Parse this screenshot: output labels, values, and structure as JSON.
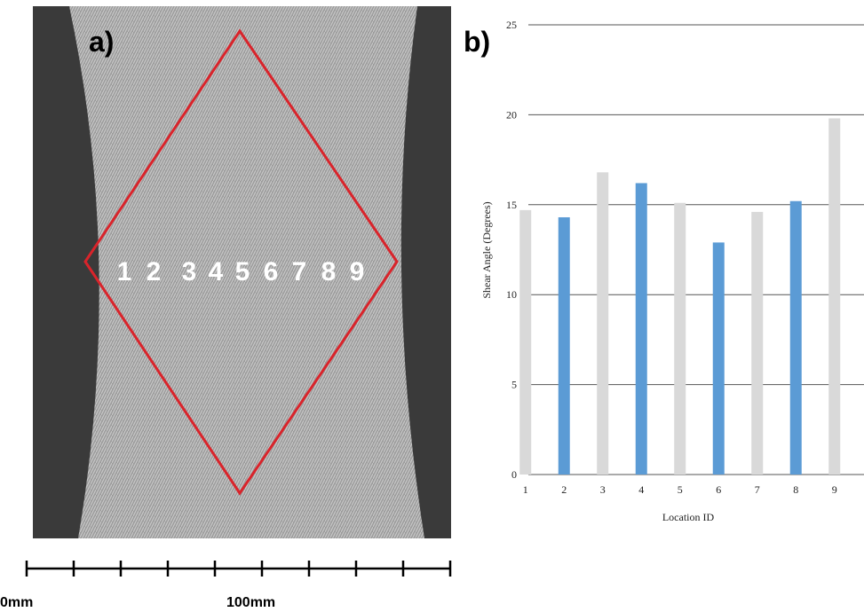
{
  "figure": {
    "panel_a": "a)",
    "panel_b": "b)",
    "location_labels": [
      "1",
      "2",
      "3",
      "4",
      "5",
      "6",
      "7",
      "8",
      "9"
    ],
    "scale_start": "0mm",
    "scale_mid": "100mm"
  },
  "chart_data": {
    "type": "bar",
    "y_label": "Shear Angle (Degrees)",
    "x_label": "Location ID",
    "categories": [
      "1",
      "2",
      "3",
      "4",
      "5",
      "6",
      "7",
      "8",
      "9"
    ],
    "values": [
      14.7,
      14.3,
      16.8,
      16.2,
      15.1,
      12.9,
      14.6,
      15.2,
      19.8
    ],
    "colors": [
      "#d9d9d9",
      "#5b9bd5",
      "#d9d9d9",
      "#5b9bd5",
      "#d9d9d9",
      "#5b9bd5",
      "#d9d9d9",
      "#5b9bd5",
      "#d9d9d9"
    ],
    "ylim": [
      0,
      25
    ],
    "yticks": [
      0,
      5,
      10,
      15,
      20,
      25
    ],
    "grid": true
  }
}
